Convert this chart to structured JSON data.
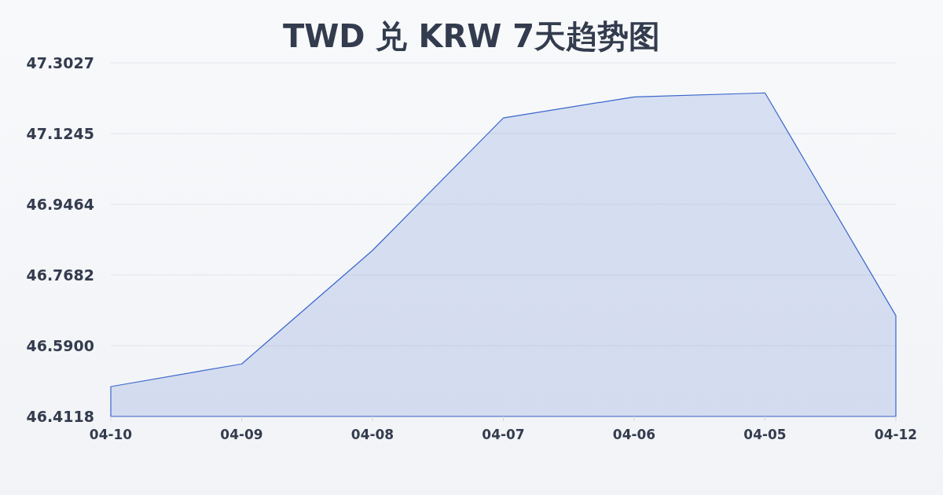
{
  "chart_data": {
    "type": "area",
    "title": "TWD 兑 KRW 7天趋势图",
    "categories": [
      "04-10",
      "04-09",
      "04-08",
      "04-07",
      "04-06",
      "04-05",
      "04-12"
    ],
    "series": [
      {
        "color": "#3a66cc",
        "values": [
          46.487,
          46.544,
          46.83,
          47.164,
          47.217,
          47.227,
          46.666
        ]
      }
    ],
    "ylim": [
      46.4118,
      47.3027
    ],
    "yticks": [
      46.4118,
      {
        "value": 46.59,
        "label": "46.5900"
      },
      46.7682,
      46.9464,
      47.1245,
      47.3027
    ],
    "grid": "y"
  }
}
